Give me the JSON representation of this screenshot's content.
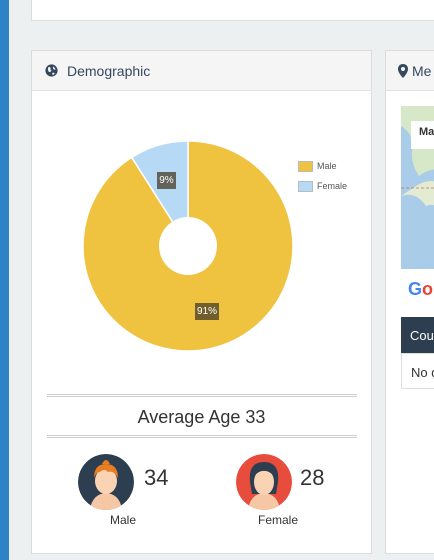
{
  "demographic": {
    "title": "Demographic",
    "average_age_label": "Average Age 33",
    "male": {
      "count": "34",
      "label": "Male"
    },
    "female": {
      "count": "28",
      "label": "Female"
    }
  },
  "map_panel": {
    "title_partial": "Me",
    "map_label_partial": "Ma",
    "google_partial": "Go",
    "table_header_partial": "Cou",
    "table_cell_partial": "No d"
  },
  "chart_data": {
    "type": "pie",
    "style": "donut",
    "categories": [
      "Male",
      "Female"
    ],
    "values": [
      91,
      9
    ],
    "value_labels": [
      "91%",
      "9%"
    ],
    "colors": [
      "#efc23f",
      "#b6d9f5"
    ],
    "legend": "top-right"
  }
}
